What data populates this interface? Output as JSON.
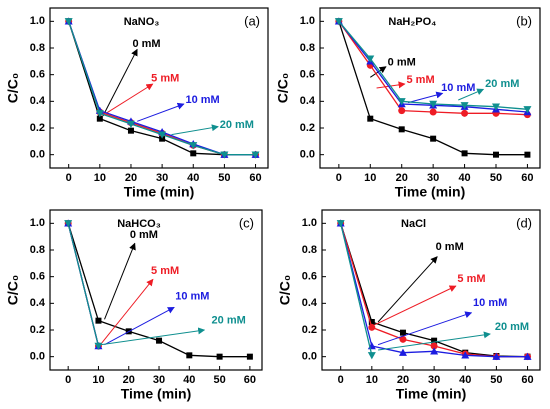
{
  "chart_data": [
    {
      "type": "line",
      "title": "NaNO₃",
      "panel_label": "(a)",
      "xlabel": "Time (min)",
      "ylabel": "C/C₀",
      "x": [
        0,
        10,
        20,
        30,
        40,
        50,
        60
      ],
      "xlim": [
        -6,
        64
      ],
      "ylim": [
        -0.1,
        1.1
      ],
      "xticks": [
        0,
        10,
        20,
        30,
        40,
        50,
        60
      ],
      "yticks": [
        {
          "value": 0,
          "label": "0.0"
        },
        0.2,
        0.4,
        0.6,
        0.8,
        {
          "value": 1,
          "label": "1.0"
        }
      ],
      "series": [
        {
          "name": "0 mM",
          "color": "#000000",
          "marker": "square",
          "values": [
            1,
            0.27,
            0.18,
            0.12,
            0.01,
            0,
            0
          ]
        },
        {
          "name": "5 mM",
          "color": "#ee1c25",
          "marker": "circle",
          "values": [
            1,
            0.32,
            0.24,
            0.16,
            0.07,
            0,
            0
          ]
        },
        {
          "name": "10 mM",
          "color": "#1c1ce0",
          "marker": "triangle-up",
          "values": [
            1,
            0.33,
            0.25,
            0.17,
            0.08,
            0,
            0
          ]
        },
        {
          "name": "20 mM",
          "color": "#0f8f8f",
          "marker": "triangle-down",
          "values": [
            1,
            0.31,
            0.23,
            0.15,
            0.07,
            0,
            0
          ]
        }
      ]
    },
    {
      "type": "line",
      "title": "NaH₂PO₄",
      "panel_label": "(b)",
      "xlabel": "Time (min)",
      "ylabel": "C/C₀",
      "x": [
        0,
        10,
        20,
        30,
        40,
        50,
        60
      ],
      "xlim": [
        -6,
        64
      ],
      "ylim": [
        -0.1,
        1.1
      ],
      "xticks": [
        0,
        10,
        20,
        30,
        40,
        50,
        60
      ],
      "yticks": [
        {
          "value": 0,
          "label": "0.0"
        },
        0.2,
        0.4,
        0.6,
        0.8,
        {
          "value": 1,
          "label": "1.0"
        }
      ],
      "series": [
        {
          "name": "0 mM",
          "color": "#000000",
          "marker": "square",
          "values": [
            1,
            0.27,
            0.19,
            0.12,
            0.01,
            0,
            0
          ]
        },
        {
          "name": "5 mM",
          "color": "#ee1c25",
          "marker": "circle",
          "values": [
            1,
            0.67,
            0.33,
            0.32,
            0.31,
            0.31,
            0.3
          ]
        },
        {
          "name": "10 mM",
          "color": "#1c1ce0",
          "marker": "triangle-up",
          "values": [
            1,
            0.7,
            0.38,
            0.37,
            0.36,
            0.34,
            0.32
          ]
        },
        {
          "name": "20 mM",
          "color": "#0f8f8f",
          "marker": "triangle-down",
          "values": [
            1,
            0.72,
            0.4,
            0.38,
            0.37,
            0.36,
            0.34
          ]
        }
      ]
    },
    {
      "type": "line",
      "title": "NaHCO₃",
      "panel_label": "(c)",
      "xlabel": "Time (min)",
      "ylabel": "C/C₀",
      "x": [
        0,
        10,
        20,
        30,
        40,
        50,
        60
      ],
      "xlim": [
        -6,
        64
      ],
      "ylim": [
        -0.1,
        1.1
      ],
      "xticks": [
        0,
        10,
        20,
        30,
        40,
        50,
        60
      ],
      "yticks": [
        {
          "value": 0,
          "label": "0.0"
        },
        0.2,
        0.4,
        0.6,
        0.8,
        {
          "value": 1,
          "label": "1.0"
        }
      ],
      "series": [
        {
          "name": "0 mM",
          "color": "#000000",
          "marker": "square",
          "values": [
            1,
            0.27,
            0.19,
            0.12,
            0.01,
            0,
            0
          ]
        },
        {
          "name": "5 mM",
          "color": "#ee1c25",
          "marker": "circle",
          "values": [
            1,
            0.08,
            null,
            null,
            null,
            null,
            null
          ]
        },
        {
          "name": "10 mM",
          "color": "#1c1ce0",
          "marker": "triangle-up",
          "values": [
            1,
            0.08,
            null,
            null,
            null,
            null,
            null
          ]
        },
        {
          "name": "20 mM",
          "color": "#0f8f8f",
          "marker": "triangle-down",
          "values": [
            1,
            0.08,
            null,
            null,
            null,
            null,
            null
          ]
        }
      ]
    },
    {
      "type": "line",
      "title": "NaCl",
      "panel_label": "(d)",
      "xlabel": "Time (min)",
      "ylabel": "C/C₀",
      "x": [
        0,
        10,
        20,
        30,
        40,
        50,
        60
      ],
      "xlim": [
        -6,
        64
      ],
      "ylim": [
        -0.1,
        1.1
      ],
      "xticks": [
        0,
        10,
        20,
        30,
        40,
        50,
        60
      ],
      "yticks": [
        {
          "value": 0,
          "label": "0.0"
        },
        0.2,
        0.4,
        0.6,
        0.8,
        {
          "value": 1,
          "label": "1.0"
        }
      ],
      "series": [
        {
          "name": "0 mM",
          "color": "#000000",
          "marker": "square",
          "values": [
            1,
            0.26,
            0.18,
            0.12,
            0.03,
            0.005,
            0
          ]
        },
        {
          "name": "5 mM",
          "color": "#ee1c25",
          "marker": "circle",
          "values": [
            1,
            0.22,
            0.13,
            0.08,
            0.02,
            0,
            0
          ]
        },
        {
          "name": "10 mM",
          "color": "#1c1ce0",
          "marker": "triangle-up",
          "values": [
            1,
            0.08,
            0.03,
            0.04,
            0.01,
            0,
            0
          ]
        },
        {
          "name": "20 mM",
          "color": "#0f8f8f",
          "marker": "triangle-down",
          "values": [
            1,
            0.01,
            null,
            null,
            null,
            null,
            null
          ]
        }
      ]
    }
  ]
}
